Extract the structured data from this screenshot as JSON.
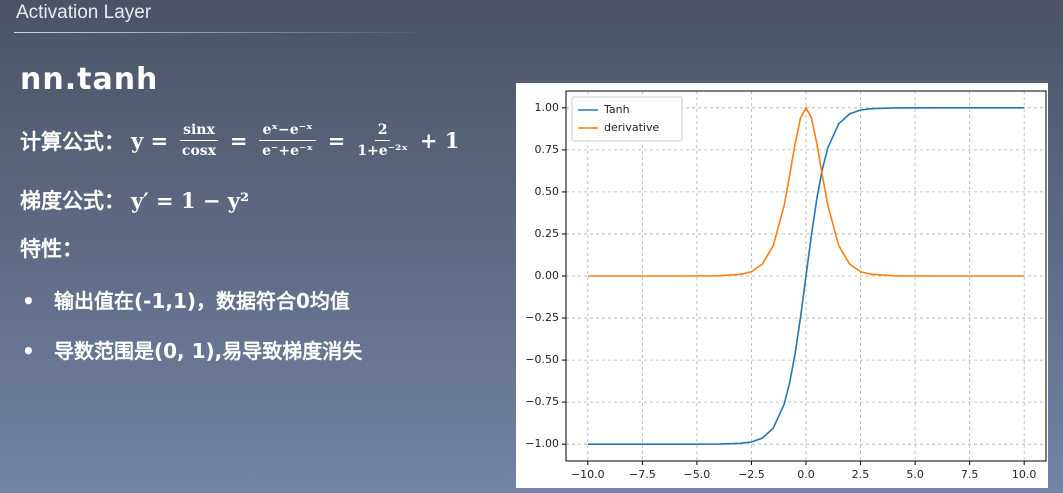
{
  "header": {
    "title": "Activation Layer"
  },
  "heading": "nn.tanh",
  "formula1": {
    "label": "计算公式：",
    "tokens": [
      "y =",
      {
        "num": "sinx",
        "den": "cosx"
      },
      "=",
      {
        "num": "eˣ−e⁻ˣ",
        "den": "e⁻+e⁻ˣ"
      },
      "=",
      {
        "num": "2",
        "den": "1+e⁻²ˣ"
      },
      "+ 1"
    ]
  },
  "formula2": {
    "label": "梯度公式：",
    "expr": "y′ = 1 − y²"
  },
  "properties": {
    "label": "特性：",
    "bullets": [
      "输出值在(-1,1)，数据符合0均值",
      "导数范围是(0, 1),易导致梯度消失"
    ]
  },
  "chart_data": {
    "type": "line",
    "x": [
      -10,
      -8,
      -6,
      -4,
      -3,
      -2.5,
      -2,
      -1.5,
      -1,
      -0.75,
      -0.5,
      -0.25,
      0,
      0.25,
      0.5,
      0.75,
      1,
      1.5,
      2,
      2.5,
      3,
      4,
      6,
      8,
      10
    ],
    "series": [
      {
        "name": "Tanh",
        "color": "#1f77b4",
        "values": [
          -1.0,
          -1.0,
          -1.0,
          -0.999,
          -0.995,
          -0.987,
          -0.964,
          -0.905,
          -0.762,
          -0.635,
          -0.462,
          -0.245,
          0,
          0.245,
          0.462,
          0.635,
          0.762,
          0.905,
          0.964,
          0.987,
          0.995,
          0.999,
          1.0,
          1.0,
          1.0
        ]
      },
      {
        "name": "derivative",
        "color": "#ff7f0e",
        "values": [
          0,
          0,
          0,
          0.001,
          0.01,
          0.025,
          0.071,
          0.181,
          0.42,
          0.597,
          0.786,
          0.94,
          1,
          0.94,
          0.786,
          0.597,
          0.42,
          0.181,
          0.071,
          0.025,
          0.01,
          0.001,
          0,
          0,
          0
        ]
      }
    ],
    "xlim": [
      -11,
      11
    ],
    "ylim": [
      -1.1,
      1.1
    ],
    "xticks": [
      {
        "value": -10,
        "label": "−10.0"
      },
      {
        "value": -7.5,
        "label": "−7.5"
      },
      {
        "value": -5,
        "label": "−5.0"
      },
      {
        "value": -2.5,
        "label": "−2.5"
      },
      {
        "value": 0,
        "label": "0.0"
      },
      {
        "value": 2.5,
        "label": "2.5"
      },
      {
        "value": 5,
        "label": "5.0"
      },
      {
        "value": 7.5,
        "label": "7.5"
      },
      {
        "value": 10,
        "label": "10.0"
      }
    ],
    "yticks": [
      {
        "value": -1,
        "label": "−1.00"
      },
      {
        "value": -0.75,
        "label": "−0.75"
      },
      {
        "value": -0.5,
        "label": "−0.50"
      },
      {
        "value": -0.25,
        "label": "−0.25"
      },
      {
        "value": 0,
        "label": "0.00"
      },
      {
        "value": 0.25,
        "label": "0.25"
      },
      {
        "value": 0.5,
        "label": "0.50"
      },
      {
        "value": 0.75,
        "label": "0.75"
      },
      {
        "value": 1,
        "label": "1.00"
      }
    ],
    "grid": true,
    "legend": "upper left"
  }
}
